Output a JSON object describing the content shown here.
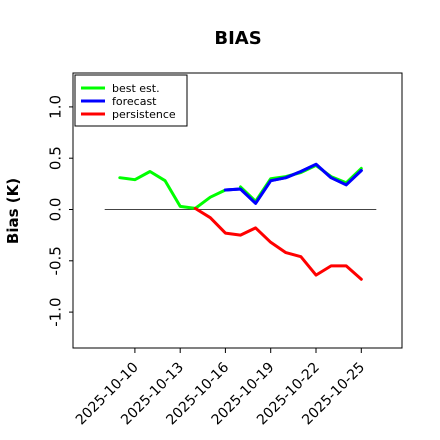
{
  "chart_data": {
    "type": "line",
    "title": "BIAS",
    "xlabel": "",
    "ylabel": "Bias (K)",
    "x_tick_labels": [
      "2025-10-10",
      "2025-10-13",
      "2025-10-16",
      "2025-10-19",
      "2025-10-22",
      "2025-10-25"
    ],
    "x_tick_days": [
      10,
      13,
      16,
      19,
      22,
      25
    ],
    "highlighted_tick": "2025-10-16",
    "highlight_color": "#228b22",
    "y_ticks": [
      -1.0,
      -0.5,
      0.0,
      0.5,
      1.0
    ],
    "y_tick_labels": [
      "-1.0",
      "-0.5",
      "0.0",
      "0.5",
      "1.0"
    ],
    "xlim": [
      5.9,
      27.7
    ],
    "ylim": [
      -1.35,
      1.33
    ],
    "zero_line_range": [
      8,
      26
    ],
    "zero_line_color": "#444444",
    "legend_position": "upper-left",
    "series": [
      {
        "name": "best est.",
        "color": "#00ff00",
        "x": [
          9,
          10,
          11,
          12,
          13,
          14,
          15,
          16
        ],
        "y": [
          0.31,
          0.29,
          0.37,
          0.28,
          0.03,
          0.01,
          0.12,
          0.19
        ]
      },
      {
        "name": "forecast",
        "color": "#0000ff",
        "x": [
          16,
          17,
          18,
          19,
          20,
          21,
          22,
          23,
          24,
          25
        ],
        "y": [
          0.19,
          0.2,
          0.06,
          0.28,
          0.31,
          0.37,
          0.44,
          0.31,
          0.24,
          0.38
        ]
      },
      {
        "name": "persistence",
        "color": "#ff0000",
        "x": [
          14,
          15,
          16,
          17,
          18,
          19,
          20,
          21,
          22,
          23,
          24,
          25
        ],
        "y": [
          0.01,
          -0.08,
          -0.23,
          -0.25,
          -0.18,
          -0.32,
          -0.42,
          -0.46,
          -0.64,
          -0.55,
          -0.55,
          -0.68
        ]
      },
      {
        "name": "",
        "color": "#00ff00",
        "x": [
          17,
          18,
          19,
          20,
          21,
          22,
          23,
          24,
          25
        ],
        "y": [
          0.22,
          0.08,
          0.3,
          0.32,
          0.36,
          0.43,
          0.32,
          0.26,
          0.4
        ]
      }
    ]
  }
}
